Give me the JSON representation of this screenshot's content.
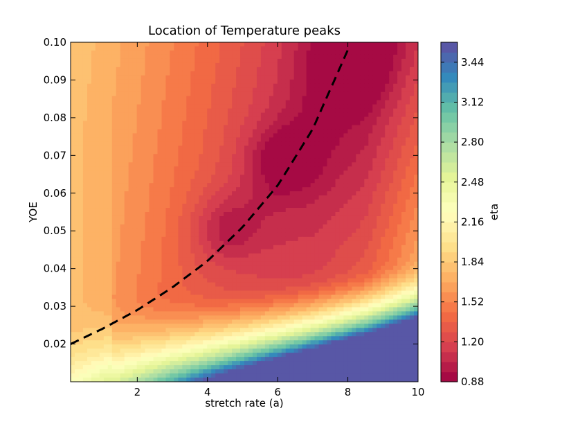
{
  "chart_data": {
    "type": "heatmap",
    "title": "Location of Temperature peaks",
    "xlabel": "stretch rate (a)",
    "ylabel": "YOE",
    "colorbar_label": "eta",
    "xlim": [
      0.1,
      10
    ],
    "ylim": [
      0.01,
      0.1
    ],
    "x_ticks": [
      2,
      4,
      6,
      8,
      10
    ],
    "y_ticks": [
      0.02,
      0.03,
      0.04,
      0.05,
      0.06,
      0.07,
      0.08,
      0.09,
      0.1
    ],
    "x_tick_labels": [
      "2",
      "4",
      "6",
      "8",
      "10"
    ],
    "y_tick_labels": [
      "0.02",
      "0.03",
      "0.04",
      "0.05",
      "0.06",
      "0.07",
      "0.08",
      "0.09",
      "0.10"
    ],
    "colorbar_range": [
      0.88,
      3.6
    ],
    "colorbar_ticks": [
      0.88,
      1.2,
      1.52,
      1.84,
      2.16,
      2.48,
      2.8,
      3.12,
      3.44
    ],
    "colorbar_tick_labels": [
      "0.88",
      "1.20",
      "1.52",
      "1.84",
      "2.16",
      "2.48",
      "2.80",
      "3.12",
      "3.44"
    ],
    "colormap": "Spectral",
    "colormap_stops": [
      "#9e0142",
      "#d53e4f",
      "#f46d43",
      "#fdae61",
      "#fee08b",
      "#ffffbf",
      "#e6f598",
      "#abdda4",
      "#66c2a5",
      "#3288bd",
      "#5e4fa2"
    ],
    "grid": false,
    "ridge_line": {
      "style": "dashed",
      "color": "#000000",
      "points": [
        [
          0.1,
          0.02
        ],
        [
          1,
          0.024
        ],
        [
          2,
          0.029
        ],
        [
          3,
          0.035
        ],
        [
          4,
          0.042
        ],
        [
          5,
          0.051
        ],
        [
          6,
          0.062
        ],
        [
          7,
          0.077
        ],
        [
          8,
          0.098
        ]
      ]
    },
    "peak_regions": [
      {
        "x": 8.1,
        "y": 0.094
      },
      {
        "x": 6.1,
        "y": 0.069
      },
      {
        "x": 4.5,
        "y": 0.051
      }
    ]
  }
}
